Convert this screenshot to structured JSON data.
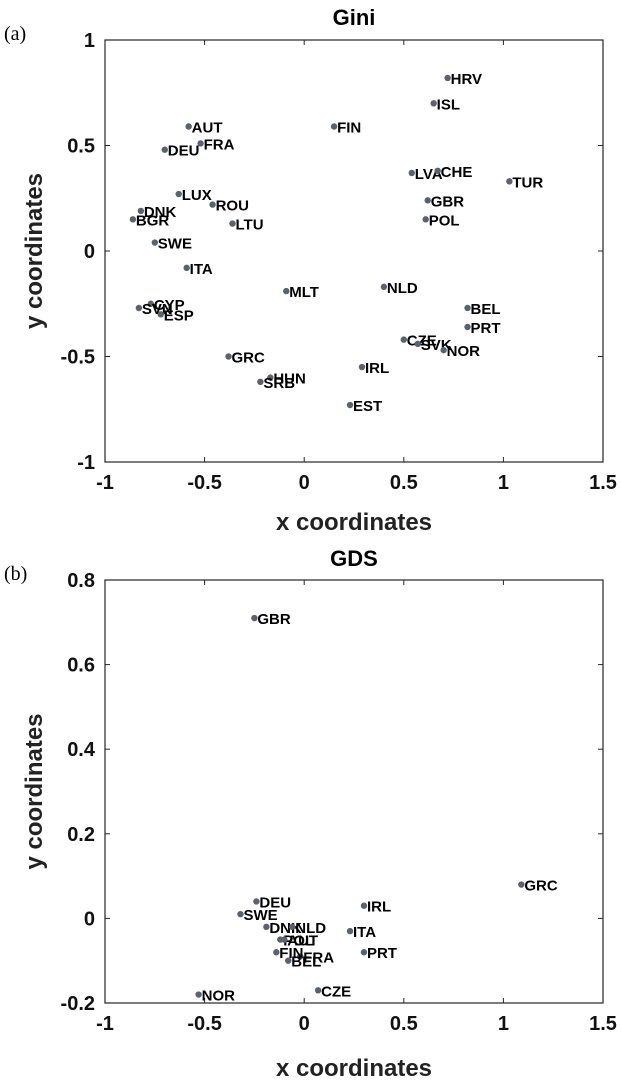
{
  "chart_data": [
    {
      "type": "scatter",
      "panel": "(a)",
      "title": "Gini",
      "xlabel": "x coordinates",
      "ylabel": "y coordinates",
      "xlim": [
        -1,
        1.5
      ],
      "ylim": [
        -1,
        1
      ],
      "xticks": [
        "-1",
        "-0.5",
        "0",
        "0.5",
        "1",
        "1.5"
      ],
      "yticks": [
        "-1",
        "-0.5",
        "0",
        "0.5",
        "1"
      ],
      "grid": false,
      "points": [
        {
          "label": "HRV",
          "x": 0.72,
          "y": 0.82
        },
        {
          "label": "ISL",
          "x": 0.65,
          "y": 0.7
        },
        {
          "label": "AUT",
          "x": -0.58,
          "y": 0.59
        },
        {
          "label": "FIN",
          "x": 0.15,
          "y": 0.59
        },
        {
          "label": "FRA",
          "x": -0.52,
          "y": 0.51
        },
        {
          "label": "DEU",
          "x": -0.7,
          "y": 0.48
        },
        {
          "label": "LVA",
          "x": 0.54,
          "y": 0.37
        },
        {
          "label": "CHE",
          "x": 0.67,
          "y": 0.38
        },
        {
          "label": "TUR",
          "x": 1.03,
          "y": 0.33
        },
        {
          "label": "LUX",
          "x": -0.63,
          "y": 0.27
        },
        {
          "label": "GBR",
          "x": 0.62,
          "y": 0.24
        },
        {
          "label": "ROU",
          "x": -0.46,
          "y": 0.22
        },
        {
          "label": "DNK",
          "x": -0.82,
          "y": 0.19
        },
        {
          "label": "BGR",
          "x": -0.86,
          "y": 0.15
        },
        {
          "label": "LTU",
          "x": -0.36,
          "y": 0.13
        },
        {
          "label": "POL",
          "x": 0.61,
          "y": 0.15
        },
        {
          "label": "SWE",
          "x": -0.75,
          "y": 0.04
        },
        {
          "label": "ITA",
          "x": -0.59,
          "y": -0.08
        },
        {
          "label": "NLD",
          "x": 0.4,
          "y": -0.17
        },
        {
          "label": "MLT",
          "x": -0.09,
          "y": -0.19
        },
        {
          "label": "CYP",
          "x": -0.77,
          "y": -0.25
        },
        {
          "label": "SVN",
          "x": -0.83,
          "y": -0.27
        },
        {
          "label": "ESP",
          "x": -0.72,
          "y": -0.3
        },
        {
          "label": "BEL",
          "x": 0.82,
          "y": -0.27
        },
        {
          "label": "PRT",
          "x": 0.82,
          "y": -0.36
        },
        {
          "label": "CZE",
          "x": 0.5,
          "y": -0.42
        },
        {
          "label": "SVK",
          "x": 0.57,
          "y": -0.44
        },
        {
          "label": "NOR",
          "x": 0.7,
          "y": -0.47
        },
        {
          "label": "GRC",
          "x": -0.38,
          "y": -0.5
        },
        {
          "label": "IRL",
          "x": 0.29,
          "y": -0.55
        },
        {
          "label": "HUN",
          "x": -0.17,
          "y": -0.6
        },
        {
          "label": "SRB",
          "x": -0.22,
          "y": -0.62
        },
        {
          "label": "EST",
          "x": 0.23,
          "y": -0.73
        }
      ]
    },
    {
      "type": "scatter",
      "panel": "(b)",
      "title": "GDS",
      "xlabel": "x coordinates",
      "ylabel": "y coordinates",
      "xlim": [
        -1,
        1.5
      ],
      "ylim": [
        -0.2,
        0.8
      ],
      "xticks": [
        "-1",
        "-0.5",
        "0",
        "0.5",
        "1",
        "1.5"
      ],
      "yticks": [
        "-0.2",
        "0",
        "0.2",
        "0.4",
        "0.6",
        "0.8"
      ],
      "grid": false,
      "points": [
        {
          "label": "GBR",
          "x": -0.25,
          "y": 0.71
        },
        {
          "label": "GRC",
          "x": 1.09,
          "y": 0.08
        },
        {
          "label": "SWE",
          "x": -0.32,
          "y": 0.01
        },
        {
          "label": "DEU",
          "x": -0.24,
          "y": 0.04
        },
        {
          "label": "DNK",
          "x": -0.19,
          "y": -0.02
        },
        {
          "label": "NLD",
          "x": -0.06,
          "y": -0.02
        },
        {
          "label": "IRL",
          "x": 0.3,
          "y": 0.03
        },
        {
          "label": "ITA",
          "x": 0.23,
          "y": -0.03
        },
        {
          "label": "POL",
          "x": -0.12,
          "y": -0.05
        },
        {
          "label": "AUT",
          "x": -0.1,
          "y": -0.05
        },
        {
          "label": "FRA",
          "x": -0.02,
          "y": -0.09
        },
        {
          "label": "FIN",
          "x": -0.14,
          "y": -0.08
        },
        {
          "label": "BEL",
          "x": -0.08,
          "y": -0.1
        },
        {
          "label": "PRT",
          "x": 0.3,
          "y": -0.08
        },
        {
          "label": "CZE",
          "x": 0.07,
          "y": -0.17
        },
        {
          "label": "NOR",
          "x": -0.53,
          "y": -0.18
        }
      ]
    }
  ]
}
